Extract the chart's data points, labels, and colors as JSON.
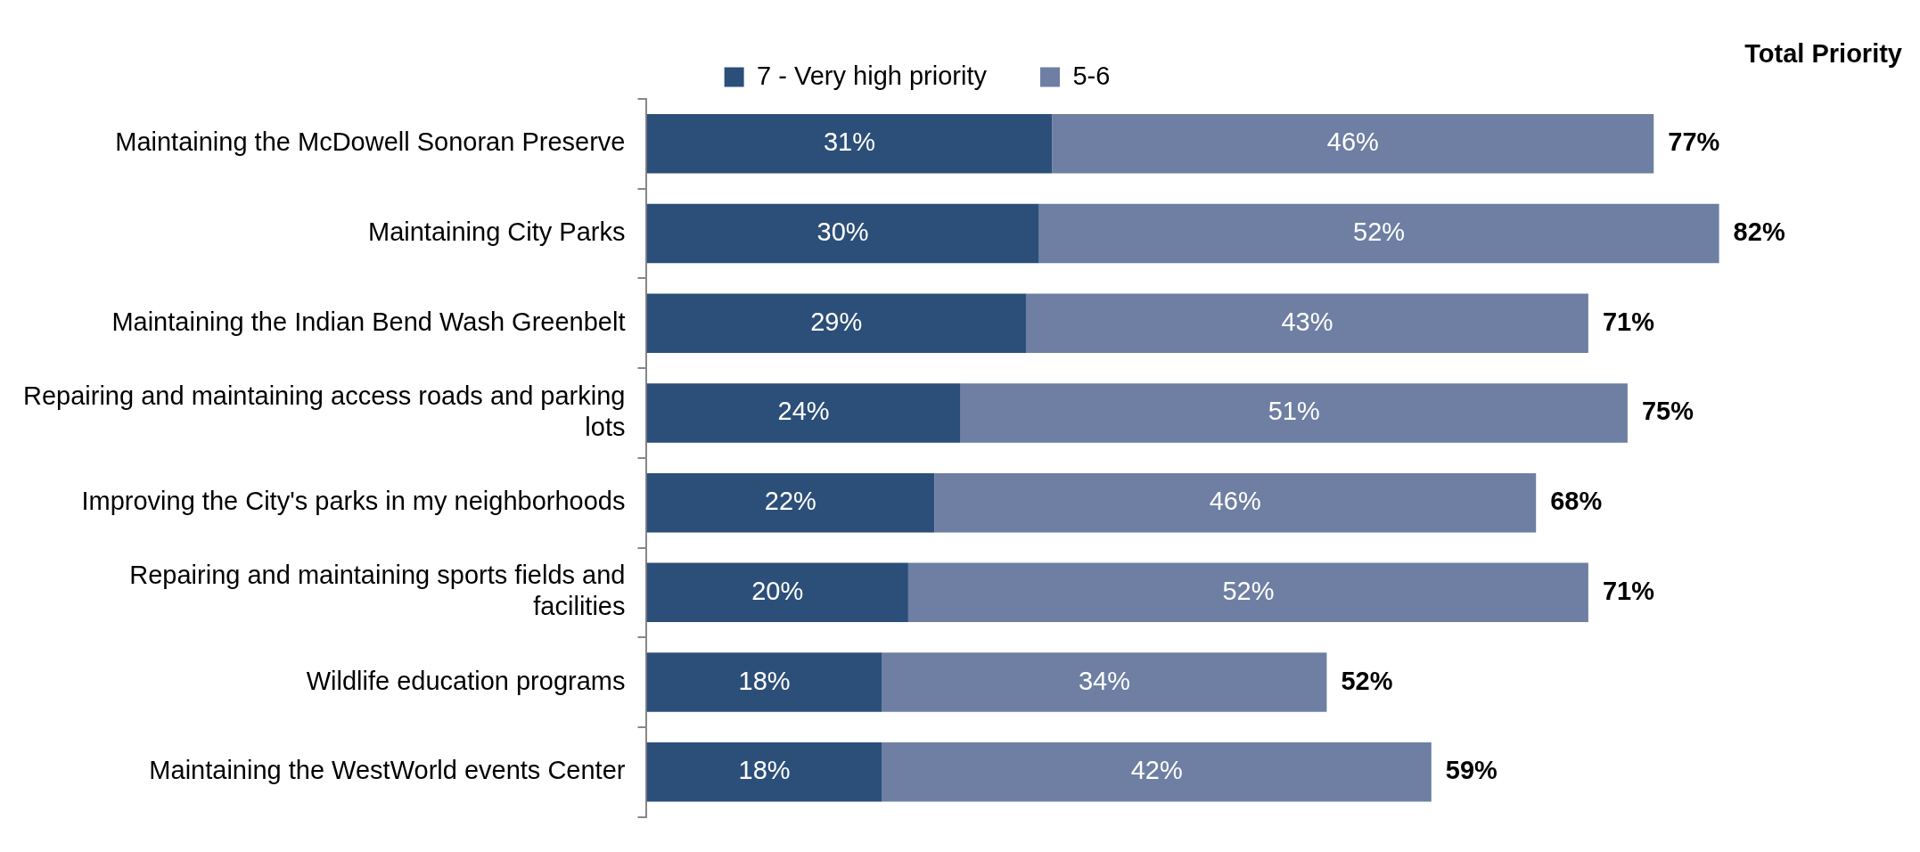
{
  "chart_data": {
    "type": "bar",
    "orientation": "horizontal",
    "stacked": true,
    "legend": "top",
    "data_labels": true,
    "annotations": [
      "Total Priority"
    ],
    "categories": [
      "Maintaining the McDowell Sonoran Preserve",
      "Maintaining City Parks",
      "Maintaining the Indian Bend Wash Greenbelt",
      "Repairing and maintaining access roads and parking lots",
      "Improving the City's parks in my neighborhoods",
      "Repairing and maintaining sports fields and facilities",
      "Wildlife education programs",
      "Maintaining the WestWorld events Center"
    ],
    "series": [
      {
        "name": "7 - Very high priority",
        "color": "#2c4f79",
        "values": [
          31,
          30,
          29,
          24,
          22,
          20,
          18,
          18
        ],
        "value_labels": [
          "31%",
          "30%",
          "29%",
          "24%",
          "22%",
          "20%",
          "18%",
          "18%"
        ]
      },
      {
        "name": "5-6",
        "color": "#6e7fa3",
        "values": [
          46,
          52,
          43,
          51,
          46,
          52,
          34,
          42
        ],
        "value_labels": [
          "46%",
          "52%",
          "43%",
          "51%",
          "46%",
          "52%",
          "34%",
          "42%"
        ]
      }
    ],
    "totals": [
      "77%",
      "82%",
      "71%",
      "75%",
      "68%",
      "71%",
      "52%",
      "59%"
    ]
  }
}
